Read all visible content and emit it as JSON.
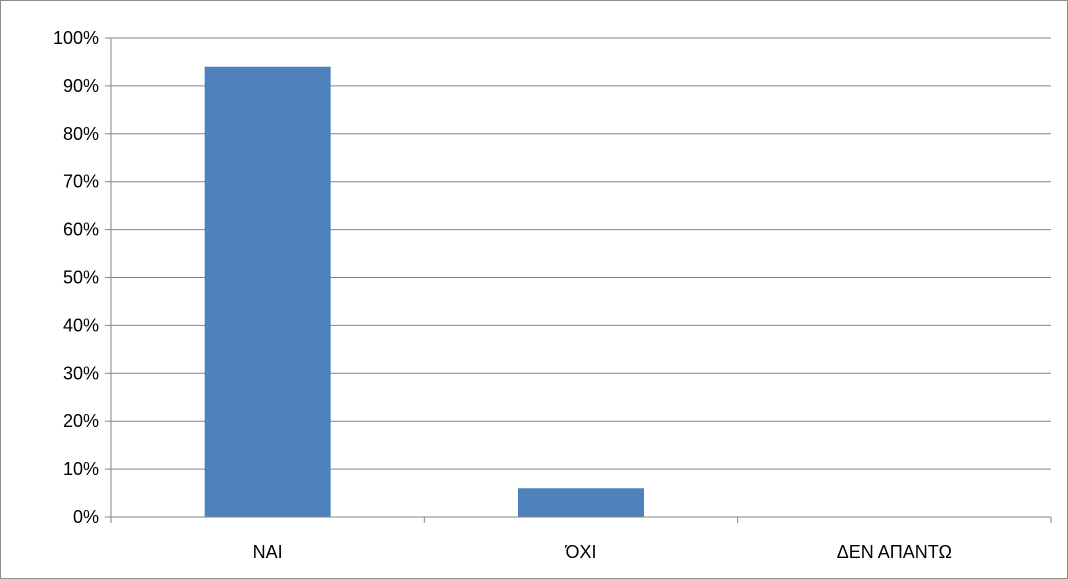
{
  "chart_data": {
    "type": "bar",
    "categories": [
      "ΝΑΙ",
      "ΌΧΙ",
      "ΔΕΝ ΑΠΑΝΤΩ"
    ],
    "values": [
      94,
      6,
      0
    ],
    "ylim": [
      0,
      100
    ],
    "y_ticks": [
      "0%",
      "10%",
      "20%",
      "30%",
      "40%",
      "50%",
      "60%",
      "70%",
      "80%",
      "90%",
      "100%"
    ],
    "y_unit": "%",
    "grid": true,
    "legend": false,
    "bar_color": "#4f81bd",
    "grid_color": "#868686"
  }
}
